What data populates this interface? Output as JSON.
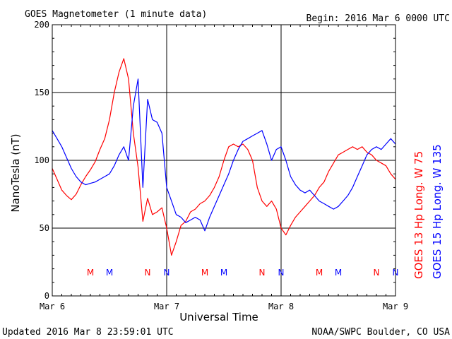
{
  "header": {
    "title": "GOES Magnetometer (1 minute data)",
    "begin": "Begin:  2016 Mar 6 0000 UTC"
  },
  "footer": {
    "updated": "Updated 2016 Mar  8 23:59:01 UTC",
    "credit": "NOAA/SWPC Boulder, CO USA"
  },
  "colors": {
    "goes13": "#ff0000",
    "goes15": "#0000ff",
    "grid": "#000000",
    "background": "#ffffff"
  },
  "chart_data": {
    "type": "line",
    "title": "GOES Magnetometer (1 minute data)",
    "xlabel": "Universal Time",
    "ylabel": "NanoTesla (nT)",
    "xlim": [
      0,
      72
    ],
    "ylim": [
      0,
      200
    ],
    "x_unit": "hours since 2016 Mar 6 0000 UTC",
    "x_ticks": [
      {
        "x": 0,
        "label": "Mar 6"
      },
      {
        "x": 24,
        "label": "Mar 7"
      },
      {
        "x": 48,
        "label": "Mar 8"
      },
      {
        "x": 72,
        "label": "Mar 9"
      }
    ],
    "y_ticks": [
      0,
      50,
      100,
      150,
      200
    ],
    "grid": true,
    "legend_placement": "right, vertical",
    "series": [
      {
        "name": "GOES 13 Hp  Long. W 75",
        "color": "#ff0000",
        "x": [
          0,
          1,
          2,
          3,
          4,
          5,
          6,
          7,
          8,
          9,
          10,
          11,
          12,
          13,
          14,
          15,
          16,
          17,
          18,
          19,
          20,
          21,
          22,
          23,
          24,
          25,
          26,
          27,
          28,
          29,
          30,
          31,
          32,
          33,
          34,
          35,
          36,
          37,
          38,
          39,
          40,
          41,
          42,
          43,
          44,
          45,
          46,
          47,
          48,
          49,
          50,
          51,
          52,
          53,
          54,
          55,
          56,
          57,
          58,
          59,
          60,
          61,
          62,
          63,
          64,
          65,
          66,
          67,
          68,
          69,
          70,
          71,
          72
        ],
        "y": [
          94,
          86,
          78,
          74,
          71,
          75,
          82,
          88,
          93,
          99,
          108,
          116,
          130,
          150,
          165,
          175,
          160,
          120,
          95,
          55,
          72,
          60,
          62,
          65,
          50,
          30,
          40,
          52,
          55,
          62,
          64,
          68,
          70,
          74,
          80,
          88,
          100,
          110,
          112,
          110,
          112,
          108,
          100,
          80,
          70,
          66,
          70,
          64,
          50,
          45,
          52,
          58,
          62,
          66,
          70,
          74,
          80,
          84,
          92,
          98,
          104,
          106,
          108,
          110,
          108,
          110,
          106,
          104,
          100,
          98,
          96,
          90,
          86
        ]
      },
      {
        "name": "GOES 15 Hp  Long. W 135",
        "color": "#0000ff",
        "x": [
          0,
          1,
          2,
          3,
          4,
          5,
          6,
          7,
          8,
          9,
          10,
          11,
          12,
          13,
          14,
          15,
          16,
          17,
          18,
          19,
          20,
          21,
          22,
          23,
          24,
          25,
          26,
          27,
          28,
          29,
          30,
          31,
          32,
          33,
          34,
          35,
          36,
          37,
          38,
          39,
          40,
          41,
          42,
          43,
          44,
          45,
          46,
          47,
          48,
          49,
          50,
          51,
          52,
          53,
          54,
          55,
          56,
          57,
          58,
          59,
          60,
          61,
          62,
          63,
          64,
          65,
          66,
          67,
          68,
          69,
          70,
          71,
          72
        ],
        "y": [
          122,
          116,
          110,
          102,
          94,
          88,
          84,
          82,
          83,
          84,
          86,
          88,
          90,
          96,
          104,
          110,
          100,
          140,
          160,
          80,
          145,
          130,
          128,
          120,
          80,
          70,
          60,
          58,
          54,
          56,
          58,
          56,
          48,
          58,
          66,
          74,
          82,
          90,
          100,
          108,
          114,
          116,
          118,
          120,
          122,
          112,
          100,
          108,
          110,
          100,
          88,
          82,
          78,
          76,
          78,
          74,
          70,
          68,
          66,
          64,
          66,
          70,
          74,
          80,
          88,
          96,
          104,
          108,
          110,
          108,
          112,
          116,
          112
        ]
      }
    ],
    "event_markers": [
      {
        "label": "M",
        "x": 8,
        "color": "#ff0000"
      },
      {
        "label": "M",
        "x": 12,
        "color": "#0000ff"
      },
      {
        "label": "N",
        "x": 20,
        "color": "#ff0000"
      },
      {
        "label": "N",
        "x": 24,
        "color": "#0000ff"
      },
      {
        "label": "M",
        "x": 32,
        "color": "#ff0000"
      },
      {
        "label": "M",
        "x": 36,
        "color": "#0000ff"
      },
      {
        "label": "N",
        "x": 44,
        "color": "#ff0000"
      },
      {
        "label": "N",
        "x": 48,
        "color": "#0000ff"
      },
      {
        "label": "M",
        "x": 56,
        "color": "#ff0000"
      },
      {
        "label": "M",
        "x": 60,
        "color": "#0000ff"
      },
      {
        "label": "N",
        "x": 68,
        "color": "#ff0000"
      },
      {
        "label": "N",
        "x": 72,
        "color": "#0000ff"
      }
    ]
  }
}
